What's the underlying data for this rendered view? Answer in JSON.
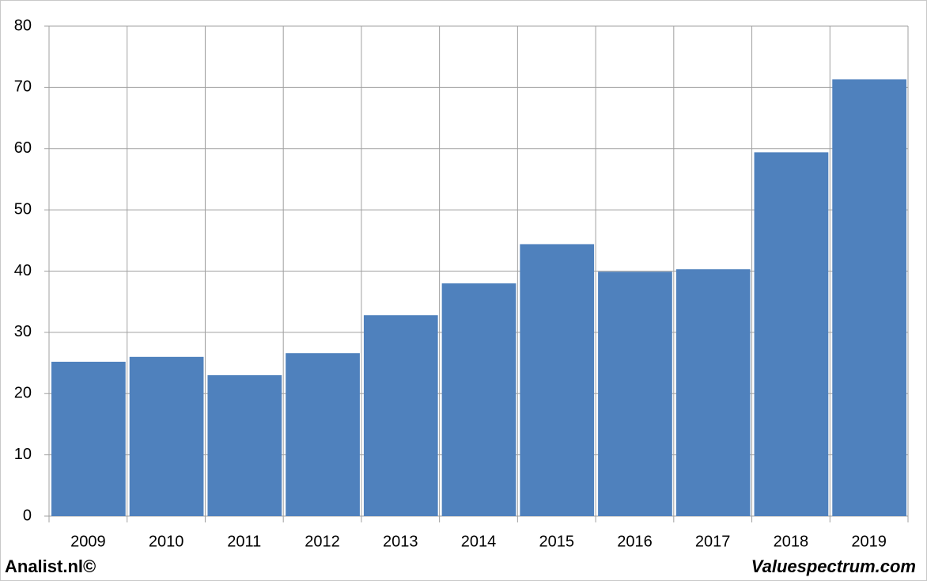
{
  "chart_data": {
    "type": "bar",
    "categories": [
      "2009",
      "2010",
      "2011",
      "2012",
      "2013",
      "2014",
      "2015",
      "2016",
      "2017",
      "2018",
      "2019"
    ],
    "values": [
      25.2,
      26.0,
      23.0,
      26.6,
      32.8,
      38.0,
      44.4,
      39.9,
      40.3,
      59.4,
      71.3
    ],
    "color": "#4f81bd",
    "ylim": [
      0,
      80
    ],
    "yticks": [
      0,
      10,
      20,
      30,
      40,
      50,
      60,
      70,
      80
    ],
    "grid": true,
    "annotations": [
      "Analist.nl©",
      "Valuespectrum.com"
    ]
  }
}
